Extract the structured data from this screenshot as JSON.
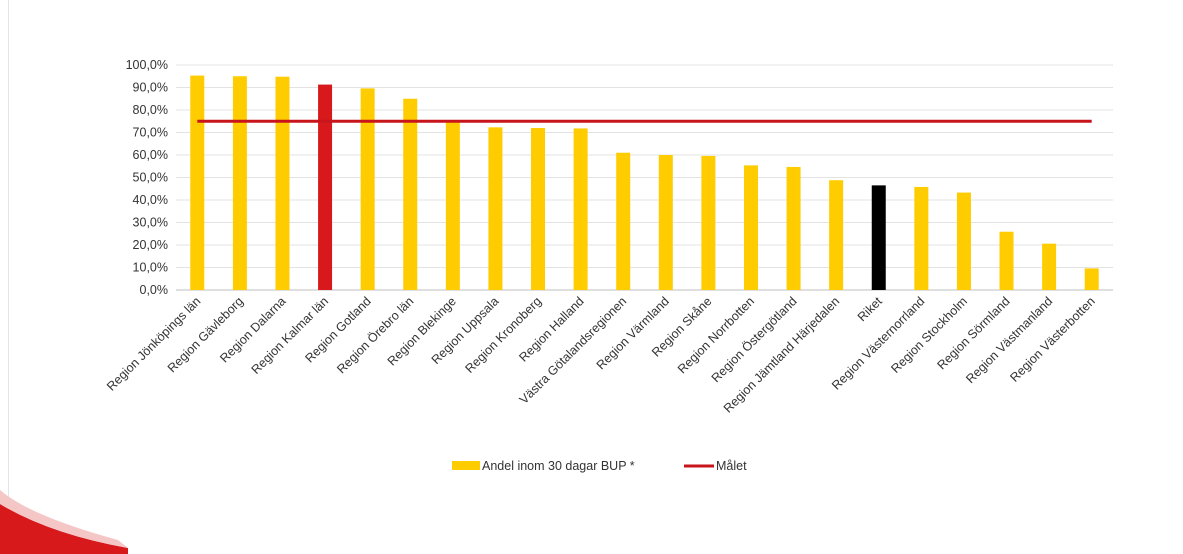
{
  "chart_data": {
    "type": "bar",
    "categories": [
      "Region Jönköpings län",
      "Region Gävleborg",
      "Region Dalarna",
      "Region Kalmar län",
      "Region Gotland",
      "Region Örebro län",
      "Region Blekinge",
      "Region Uppsala",
      "Region Kronoberg",
      "Region Halland",
      "Västra Götalandsregionen",
      "Region Värmland",
      "Region Skåne",
      "Region Norrbotten",
      "Region Östergötland",
      "Region Jämtland Härjedalen",
      "Riket",
      "Region Västernorrland",
      "Region Stockholm",
      "Region Sörmland",
      "Region Västmanland",
      "Region Västerbotten"
    ],
    "series": [
      {
        "name": "Andel inom 30 dagar BUP *",
        "values": [
          95.3,
          95.0,
          94.8,
          91.3,
          89.6,
          85.0,
          75.5,
          72.3,
          72.0,
          71.8,
          61.0,
          60.0,
          59.6,
          55.4,
          54.7,
          48.8,
          46.5,
          45.8,
          43.3,
          25.9,
          20.6,
          9.6
        ],
        "color": "#FFCC00",
        "highlight_colors": {
          "3": "#D7191C",
          "16": "#000000"
        }
      },
      {
        "name": "Målet",
        "type": "line",
        "value": 75,
        "color": "#C8151B"
      }
    ],
    "y_tick_labels": [
      "0,0%",
      "10,0%",
      "20,0%",
      "30,0%",
      "40,0%",
      "50,0%",
      "60,0%",
      "70,0%",
      "80,0%",
      "90,0%",
      "100,0%"
    ],
    "ylim": [
      0,
      100
    ],
    "grid": true,
    "legend": "bottom"
  }
}
